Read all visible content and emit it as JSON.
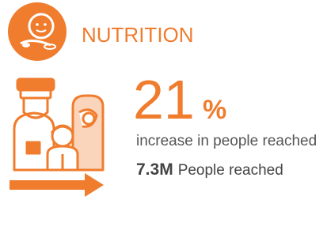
{
  "header": {
    "title": "NUTRITION"
  },
  "stat": {
    "value": "21",
    "unit": "%",
    "caption": "increase in people reached"
  },
  "reached": {
    "value": "7.3M",
    "label": "People reached"
  }
}
